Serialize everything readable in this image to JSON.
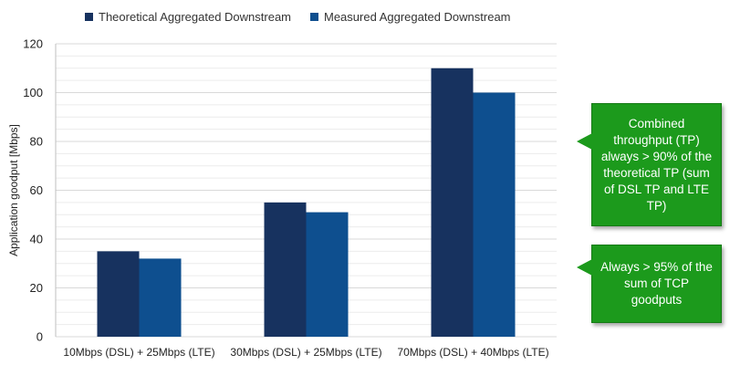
{
  "chart_data": {
    "type": "bar",
    "categories": [
      "10Mbps (DSL) + 25Mbps (LTE)",
      "30Mbps (DSL) + 25Mbps (LTE)",
      "70Mbps (DSL) + 40Mbps (LTE)"
    ],
    "series": [
      {
        "name": "Theoretical Aggregated Downstream",
        "color": "#17325f",
        "values": [
          35,
          55,
          110
        ]
      },
      {
        "name": "Measured Aggregated Downstream",
        "color": "#0e4f8f",
        "values": [
          32,
          51,
          100
        ]
      }
    ],
    "title": "",
    "xlabel": "",
    "ylabel": "Application goodput [Mbps]",
    "ylim": [
      0,
      120
    ],
    "yticks": [
      0,
      20,
      40,
      60,
      80,
      100,
      120
    ],
    "grid": true,
    "legend_position": "top"
  },
  "callouts": {
    "combined": "Combined throughput (TP) always > 90% of the theoretical TP (sum of DSL TP and LTE TP)",
    "tcp": "Always > 95% of the sum of TCP goodputs"
  },
  "colors": {
    "callout_bg": "#1c9a1c",
    "grid": "#d9d9d9"
  }
}
